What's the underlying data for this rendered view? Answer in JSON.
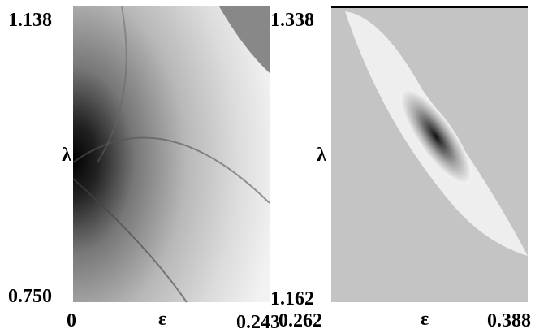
{
  "panels": [
    {
      "y_top": "1.138",
      "y_bottom": "0.750",
      "y_label": "λ",
      "x_left": "0",
      "x_right": "0.243",
      "x_label": "ε"
    },
    {
      "y_top": "1.338",
      "y_bottom": "1.162",
      "y_label": "λ",
      "x_left": "0.262",
      "x_right": "0.388",
      "x_label": "ε"
    }
  ]
}
